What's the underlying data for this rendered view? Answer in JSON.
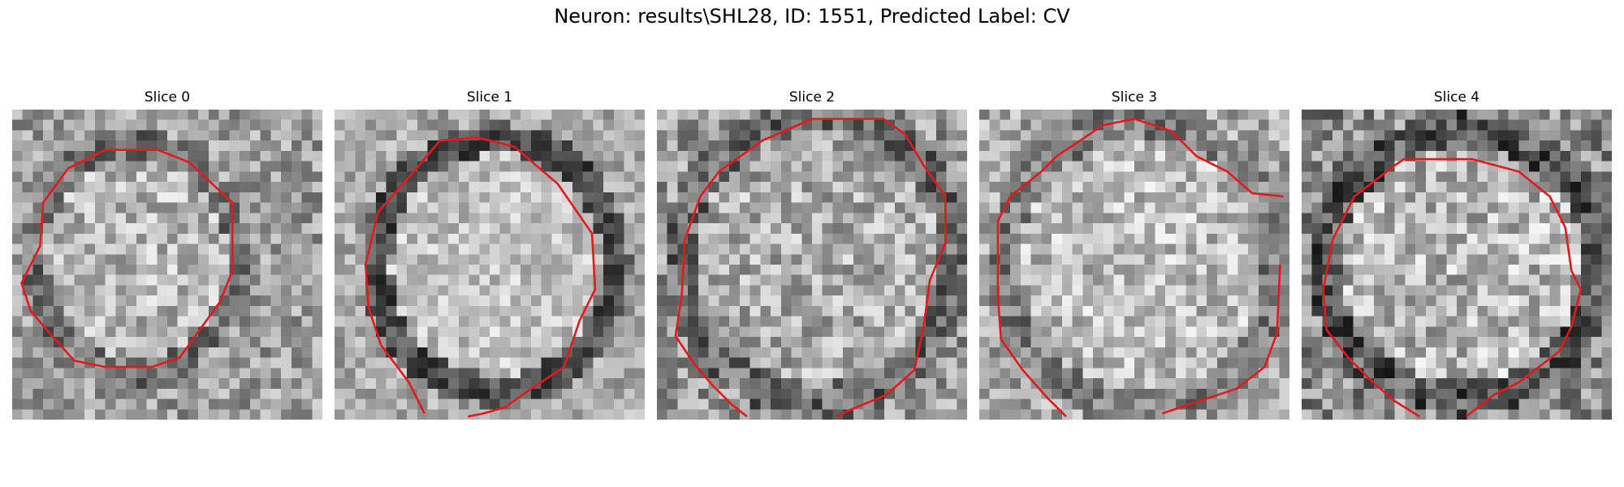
{
  "figure": {
    "title": "Neuron: results\\SHL28, ID: 1551, Predicted Label: CV",
    "contour_color": "#e31a1c",
    "colormap": "grayscale"
  },
  "panels": [
    {
      "title": "Slice 0",
      "image": "grayscale-microscopy-slice"
    },
    {
      "title": "Slice 1",
      "image": "grayscale-microscopy-slice"
    },
    {
      "title": "Slice 2",
      "image": "grayscale-microscopy-slice"
    },
    {
      "title": "Slice 3",
      "image": "grayscale-microscopy-slice"
    },
    {
      "title": "Slice 4",
      "image": "grayscale-microscopy-slice"
    }
  ]
}
